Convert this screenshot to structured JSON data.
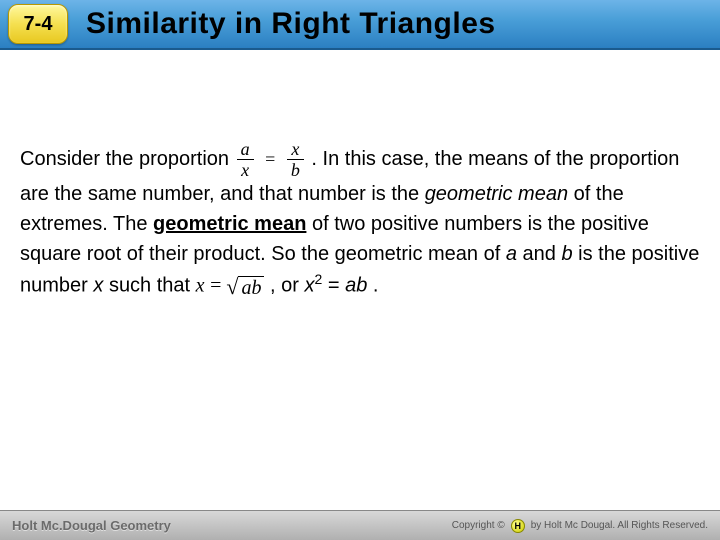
{
  "header": {
    "section_number": "7-4",
    "title": "Similarity in Right Triangles"
  },
  "body": {
    "text1": "Consider the proportion ",
    "frac1": {
      "num": "a",
      "den": "x"
    },
    "frac2": {
      "num": "x",
      "den": "b"
    },
    "text2": ". In this case, the means of the proportion are the same number, and that number is the ",
    "ital1": "geometric mean",
    "text3": " of the extremes. The ",
    "bold1": "geometric mean",
    "text4": " of two positive numbers is the positive square root of their product. So the geometric mean of ",
    "ital_a": "a",
    "text5": " and ",
    "ital_b": "b",
    "text6": " is the positive number ",
    "ital_x": "x",
    "text7": " such that  ",
    "eq_lhs": "x",
    "eq_eq": " = ",
    "radicand": "ab",
    "text8": " , or ",
    "x2": "x",
    "sup2": "2",
    "text9": " = ",
    "ab": "ab",
    "text10": "."
  },
  "footer": {
    "left": "Holt Mc.Dougal Geometry",
    "right": "by Holt Mc Dougal. All Rights Reserved.",
    "copyright": "Copyright ©"
  }
}
